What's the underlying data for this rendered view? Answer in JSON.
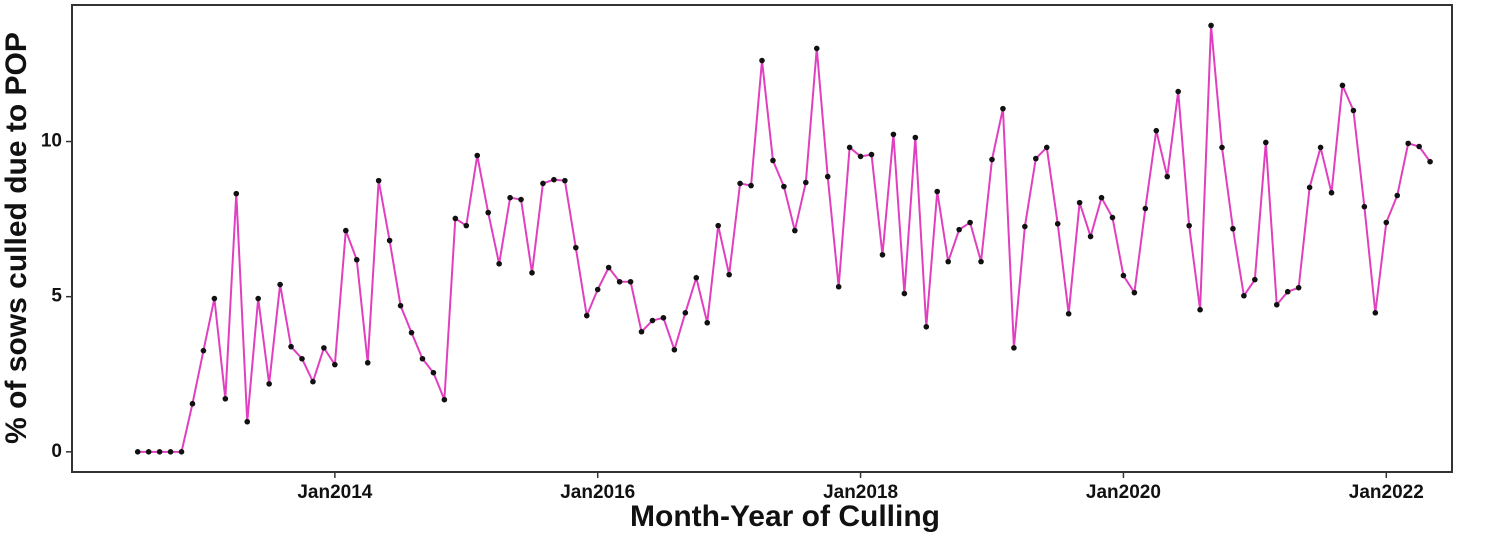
{
  "chart_data": {
    "type": "line",
    "xlabel": "Month-Year of Culling",
    "ylabel": "% of sows culled due to POP",
    "x": [
      "2012-07",
      "2012-08",
      "2012-09",
      "2012-10",
      "2012-11",
      "2012-12",
      "2013-01",
      "2013-02",
      "2013-03",
      "2013-04",
      "2013-05",
      "2013-06",
      "2013-07",
      "2013-08",
      "2013-09",
      "2013-10",
      "2013-11",
      "2013-12",
      "2014-01",
      "2014-02",
      "2014-03",
      "2014-04",
      "2014-05",
      "2014-06",
      "2014-07",
      "2014-08",
      "2014-09",
      "2014-10",
      "2014-11",
      "2014-12",
      "2015-01",
      "2015-02",
      "2015-03",
      "2015-04",
      "2015-05",
      "2015-06",
      "2015-07",
      "2015-08",
      "2015-09",
      "2015-10",
      "2015-11",
      "2015-12",
      "2016-01",
      "2016-02",
      "2016-03",
      "2016-04",
      "2016-05",
      "2016-06",
      "2016-07",
      "2016-08",
      "2016-09",
      "2016-10",
      "2016-11",
      "2016-12",
      "2017-01",
      "2017-02",
      "2017-03",
      "2017-04",
      "2017-05",
      "2017-06",
      "2017-07",
      "2017-08",
      "2017-09",
      "2017-10",
      "2017-11",
      "2017-12",
      "2018-01",
      "2018-02",
      "2018-03",
      "2018-04",
      "2018-05",
      "2018-06",
      "2018-07",
      "2018-08",
      "2018-09",
      "2018-10",
      "2018-11",
      "2018-12",
      "2019-01",
      "2019-02",
      "2019-03",
      "2019-04",
      "2019-05",
      "2019-06",
      "2019-07",
      "2019-08",
      "2019-09",
      "2019-10",
      "2019-11",
      "2019-12",
      "2020-01",
      "2020-02",
      "2020-03",
      "2020-04",
      "2020-05",
      "2020-06",
      "2020-07",
      "2020-08",
      "2020-09",
      "2020-10",
      "2020-11",
      "2020-12",
      "2021-01",
      "2021-02",
      "2021-03",
      "2021-04",
      "2021-05",
      "2021-06",
      "2021-07",
      "2021-08",
      "2021-09",
      "2021-10",
      "2021-11",
      "2021-12",
      "2022-01",
      "2022-02",
      "2022-03",
      "2022-04",
      "2022-05"
    ],
    "values": [
      0,
      0,
      0,
      0,
      0,
      1.55,
      3.26,
      4.94,
      1.71,
      8.32,
      0.97,
      4.94,
      2.19,
      5.39,
      3.39,
      3.0,
      2.26,
      3.35,
      2.81,
      7.13,
      6.19,
      2.87,
      8.74,
      6.81,
      4.71,
      3.84,
      3.0,
      2.55,
      1.68,
      7.52,
      7.29,
      9.55,
      7.71,
      6.06,
      8.19,
      8.13,
      5.77,
      8.65,
      8.77,
      8.74,
      6.58,
      4.39,
      5.23,
      5.94,
      5.48,
      5.48,
      3.87,
      4.23,
      4.32,
      3.29,
      4.48,
      5.61,
      4.16,
      7.29,
      5.71,
      8.65,
      8.58,
      12.61,
      9.39,
      8.55,
      7.13,
      8.68,
      13.0,
      8.87,
      5.32,
      9.81,
      9.52,
      9.58,
      6.35,
      10.23,
      5.1,
      10.13,
      4.03,
      8.39,
      6.13,
      7.16,
      7.39,
      6.13,
      9.42,
      11.06,
      3.35,
      7.26,
      9.45,
      9.81,
      7.35,
      4.45,
      8.03,
      6.94,
      8.19,
      7.55,
      5.68,
      5.13,
      7.84,
      10.35,
      8.87,
      11.61,
      7.29,
      4.58,
      13.74,
      9.81,
      7.19,
      5.03,
      5.55,
      9.97,
      4.74,
      5.16,
      5.29,
      8.52,
      9.81,
      8.35,
      11.81,
      11.0,
      7.9,
      4.48,
      7.39,
      8.26,
      9.94,
      9.84,
      9.35
    ],
    "color": "#e040c0",
    "marker_color": "#111111",
    "xlim": [
      "2012-01",
      "2022-07"
    ],
    "xticks": [
      {
        "value": "2014-01",
        "label": "Jan2014"
      },
      {
        "value": "2016-01",
        "label": "Jan2016"
      },
      {
        "value": "2018-01",
        "label": "Jan2018"
      },
      {
        "value": "2020-01",
        "label": "Jan2020"
      },
      {
        "value": "2022-01",
        "label": "Jan2022"
      }
    ],
    "ylim": [
      -0.65,
      14.4
    ],
    "yticks": [
      0,
      5,
      10
    ],
    "grid": false
  }
}
